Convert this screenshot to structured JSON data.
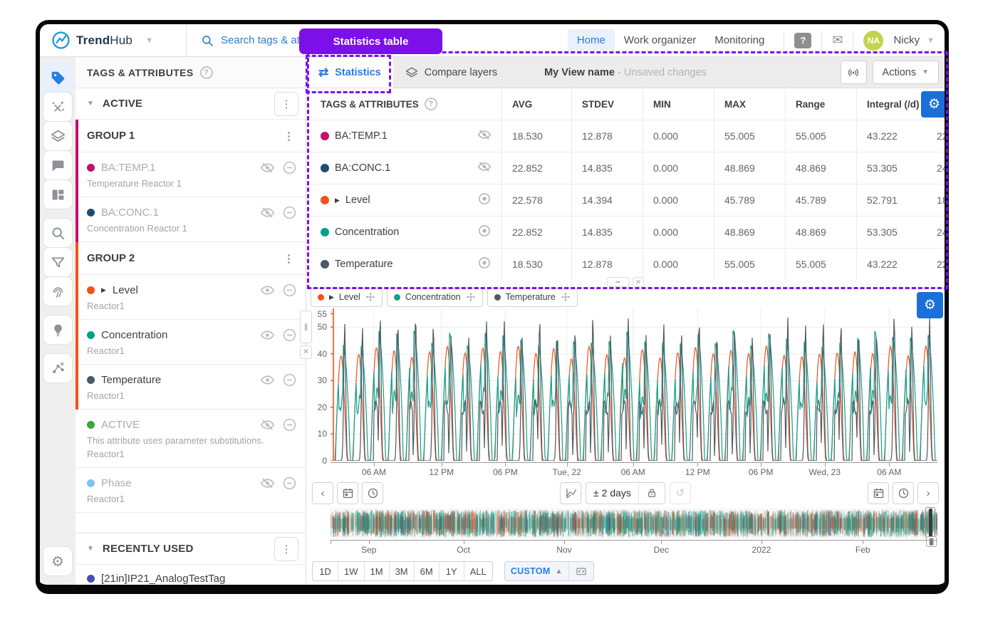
{
  "annotation": {
    "badge_label": "Statistics table",
    "accent_color": "#7b10e8"
  },
  "topbar": {
    "brand_bold": "Trend",
    "brand_light": "Hub",
    "search_placeholder": "Search tags & attributes",
    "nav_items": [
      "Home",
      "Work organizer",
      "Monitoring"
    ],
    "active_nav": "Home",
    "help_label": "?",
    "user_initials": "NA",
    "user_name": "Nicky",
    "avatar_color": "#c3d34f"
  },
  "rail": {
    "items": [
      {
        "name": "tags",
        "icon": "tag",
        "active": true,
        "group": 1
      },
      {
        "name": "calculations",
        "icon": "calculations",
        "group": 1
      },
      {
        "name": "layers",
        "icon": "layers",
        "group": 1
      },
      {
        "name": "annotations",
        "icon": "comments",
        "group": 1
      },
      {
        "name": "dashboards",
        "icon": "dashboards",
        "group": 1
      },
      {
        "name": "search",
        "icon": "search",
        "group": 2
      },
      {
        "name": "filters",
        "icon": "filter",
        "group": 2
      },
      {
        "name": "fingerprints",
        "icon": "fingerprint",
        "group": 2
      },
      {
        "name": "recommendations",
        "icon": "ideas",
        "group": 3
      },
      {
        "name": "context-items",
        "icon": "context",
        "group": 4
      }
    ],
    "settings_name": "settings"
  },
  "sidebar": {
    "title": "TAGS & ATTRIBUTES",
    "active_label": "ACTIVE",
    "groups": [
      {
        "label": "GROUP 1",
        "bar_color": "#c0106b",
        "items": [
          {
            "title": "BA:TEMP.1",
            "subtitle": "Temperature Reactor 1",
            "dot": "#c0106b",
            "visible": false,
            "dimmed": true,
            "bar": true
          },
          {
            "title": "BA:CONC.1",
            "subtitle": "Concentration Reactor 1",
            "dot": "#1d4d70",
            "visible": false,
            "dimmed": true,
            "bar": true
          }
        ]
      },
      {
        "label": "GROUP 2",
        "bar_color": "#f4511e",
        "items": [
          {
            "title": "Level",
            "subtitle": "Reactor1",
            "dot": "#f4511e",
            "visible": true,
            "expandable": true,
            "bar": true
          },
          {
            "title": "Concentration",
            "subtitle": "Reactor1",
            "dot": "#00a18a",
            "visible": true,
            "bar": true
          },
          {
            "title": "Temperature",
            "subtitle": "Reactor1",
            "dot": "#4a5964",
            "visible": true,
            "bar": true
          },
          {
            "title": "ACTIVE",
            "note": "This attribute uses parameter substitutions.",
            "subtitle": "Reactor1",
            "dot": "#3aa73a",
            "visible": false,
            "dimmed": true,
            "bar": false
          },
          {
            "title": "Phase",
            "subtitle": "Reactor1",
            "dot": "#7ec3f2",
            "visible": false,
            "dimmed": true,
            "bar": false
          }
        ]
      }
    ],
    "recent_label": "RECENTLY USED",
    "recent_items": [
      {
        "title": "[21in]IP21_AnalogTestTag",
        "dot": "#3f51b5"
      }
    ]
  },
  "stats": {
    "tabs": [
      {
        "label": "Statistics",
        "icon": "swap",
        "active": true
      },
      {
        "label": "Compare layers",
        "icon": "layers",
        "active": false
      }
    ],
    "view_title": "My View name",
    "view_status": "- Unsaved changes",
    "actions_label": "Actions",
    "columns": [
      "TAGS & ATTRIBUTES",
      "AVG",
      "STDEV",
      "MIN",
      "MAX",
      "Range",
      "Integral (/d)"
    ],
    "rows": [
      {
        "name": "BA:TEMP.1",
        "dot": "#c0106b",
        "visible": false,
        "values": [
          "18.530",
          "12.878",
          "0.000",
          "55.005",
          "55.005",
          "43.222"
        ],
        "partial": "22"
      },
      {
        "name": "BA:CONC.1",
        "dot": "#1d4d70",
        "visible": false,
        "values": [
          "22.852",
          "14.835",
          "0.000",
          "48.869",
          "48.869",
          "53.305"
        ],
        "partial": "24"
      },
      {
        "name": "Level",
        "dot": "#f4511e",
        "visible": true,
        "expandable": true,
        "values": [
          "22.578",
          "14.394",
          "0.000",
          "45.789",
          "45.789",
          "52.791"
        ],
        "partial": "18"
      },
      {
        "name": "Concentration",
        "dot": "#00a18a",
        "visible": true,
        "values": [
          "22.852",
          "14.835",
          "0.000",
          "48.869",
          "48.869",
          "53.305"
        ],
        "partial": "24"
      },
      {
        "name": "Temperature",
        "dot": "#4a5964",
        "visible": true,
        "values": [
          "18.530",
          "12.878",
          "0.000",
          "55.005",
          "55.005",
          "43.222"
        ],
        "partial": "22"
      }
    ]
  },
  "chart": {
    "legend": [
      {
        "label": "Level",
        "color": "#f4511e",
        "expandable": true
      },
      {
        "label": "Concentration",
        "color": "#12a189",
        "expandable": false
      },
      {
        "label": "Temperature",
        "color": "#4e5a63",
        "expandable": false
      }
    ],
    "y_ticks": [
      55,
      50,
      40,
      30,
      20,
      10,
      0
    ],
    "x_ticks": [
      "06 AM",
      "12 PM",
      "06 PM",
      "Tue, 22",
      "06 AM",
      "12 PM",
      "06 PM",
      "Wed, 23",
      "06 AM"
    ],
    "axis_color": "#f4511e",
    "context_label": "± 2 days",
    "overview_ticks": [
      "Sep",
      "Oct",
      "Nov",
      "Dec",
      "2022",
      "Feb"
    ],
    "range_buttons": [
      "1D",
      "1W",
      "1M",
      "3M",
      "6M",
      "1Y",
      "ALL"
    ],
    "custom_label": "CUSTOM"
  },
  "chart_data": {
    "type": "line",
    "ylim": [
      0,
      55
    ],
    "x_ticks": [
      "06 AM",
      "12 PM",
      "06 PM",
      "Tue, 22",
      "06 AM",
      "12 PM",
      "06 PM",
      "Wed, 23",
      "06 AM"
    ],
    "x_span": "± 2 days",
    "series": [
      {
        "name": "Level",
        "color": "#f4511e",
        "avg": 22.578,
        "stdev": 14.394,
        "min": 0.0,
        "max": 45.789
      },
      {
        "name": "Concentration",
        "color": "#12a189",
        "avg": 22.852,
        "stdev": 14.835,
        "min": 0.0,
        "max": 48.869
      },
      {
        "name": "Temperature",
        "color": "#4e5a63",
        "avg": 18.53,
        "stdev": 12.878,
        "min": 0.0,
        "max": 55.005
      }
    ],
    "note": "dense periodic batch oscillations between 0 and series max, ~34 cycles across visible window; overview strip spans Sep-Feb"
  }
}
